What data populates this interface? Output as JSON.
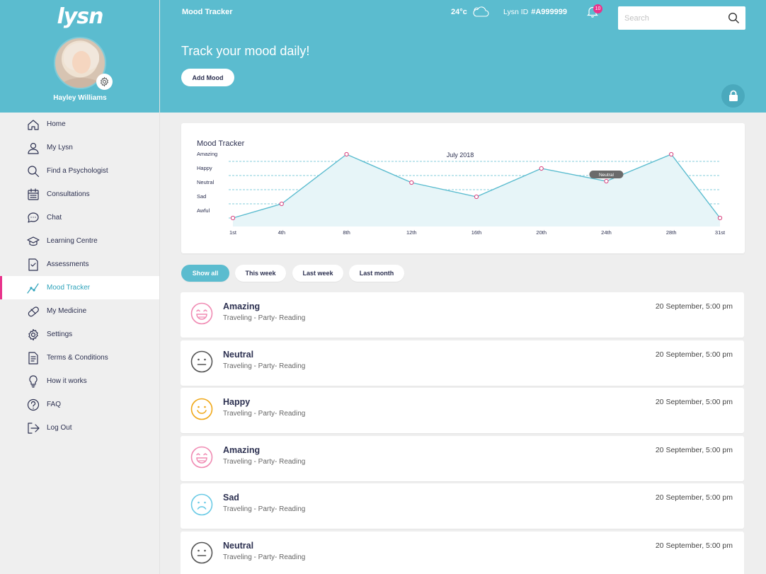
{
  "brand": {
    "logo": "lysn"
  },
  "user": {
    "name": "Hayley Williams"
  },
  "sidebar": {
    "items": [
      {
        "label": "Home",
        "icon": "home-icon",
        "active": false
      },
      {
        "label": "My Lysn",
        "icon": "user-icon",
        "active": false
      },
      {
        "label": "Find a Psychologist",
        "icon": "search-icon",
        "active": false
      },
      {
        "label": "Consultations",
        "icon": "calendar-icon",
        "active": false
      },
      {
        "label": "Chat",
        "icon": "chat-icon",
        "active": false
      },
      {
        "label": "Learning Centre",
        "icon": "graduation-cap-icon",
        "active": false
      },
      {
        "label": "Assessments",
        "icon": "assessment-icon",
        "active": false
      },
      {
        "label": "Mood Tracker",
        "icon": "trend-line-icon",
        "active": true
      },
      {
        "label": "My Medicine",
        "icon": "pill-icon",
        "active": false
      },
      {
        "label": "Settings",
        "icon": "gear-icon",
        "active": false
      },
      {
        "label": "Terms & Conditions",
        "icon": "document-icon",
        "active": false
      },
      {
        "label": "How it works",
        "icon": "lightbulb-icon",
        "active": false
      },
      {
        "label": "FAQ",
        "icon": "question-icon",
        "active": false
      },
      {
        "label": "Log Out",
        "icon": "logout-icon",
        "active": false
      }
    ]
  },
  "header": {
    "title": "Mood Tracker",
    "temperature": "24°c",
    "lysn_id_label": "Lysn ID",
    "lysn_id_value": "#A999999",
    "notification_count": "10",
    "search_placeholder": "Search",
    "hero_title": "Track your mood daily!",
    "add_mood_label": "Add Mood"
  },
  "chart_data": {
    "type": "line",
    "heading": "Mood Tracker",
    "title": "July 2018",
    "y_levels": [
      "Awful",
      "Sad",
      "Neutral",
      "Happy",
      "Amazing"
    ],
    "x_ticks": [
      "1st",
      "4th",
      "8th",
      "12th",
      "16th",
      "20th",
      "24th",
      "28th",
      "31st"
    ],
    "x": [
      1,
      4,
      8,
      12,
      16,
      20,
      24,
      28,
      31
    ],
    "values": [
      0,
      1,
      4.5,
      2.5,
      1.5,
      3.5,
      2.6,
      4.5,
      0
    ],
    "xlim": [
      1,
      31
    ],
    "ylim": [
      -0.6,
      4.5
    ],
    "grid": true,
    "tooltip": {
      "label": "Neutral",
      "x": 24
    },
    "colors": {
      "line": "#5bbccf",
      "fill": "#e7f5f8",
      "point": "#d9417e",
      "grid": "#5bbccf"
    }
  },
  "filters": [
    {
      "label": "Show all",
      "active": true
    },
    {
      "label": "This week",
      "active": false
    },
    {
      "label": "Last week",
      "active": false
    },
    {
      "label": "Last month",
      "active": false
    }
  ],
  "entries": [
    {
      "mood": "Amazing",
      "tags": "Traveling - Party- Reading",
      "time": "20 September, 5:00 pm",
      "face": "amazing-face-icon",
      "color": "#f08bb3"
    },
    {
      "mood": "Neutral",
      "tags": "Traveling - Party- Reading",
      "time": "20 September, 5:00 pm",
      "face": "neutral-face-icon",
      "color": "#555555"
    },
    {
      "mood": "Happy",
      "tags": "Traveling - Party- Reading",
      "time": "20 September, 5:00 pm",
      "face": "happy-face-icon",
      "color": "#f0a818"
    },
    {
      "mood": "Amazing",
      "tags": "Traveling - Party- Reading",
      "time": "20 September, 5:00 pm",
      "face": "amazing-face-icon",
      "color": "#f08bb3"
    },
    {
      "mood": "Sad",
      "tags": "Traveling - Party- Reading",
      "time": "20 September, 5:00 pm",
      "face": "sad-face-icon",
      "color": "#6ccbe6"
    },
    {
      "mood": "Neutral",
      "tags": "Traveling - Party- Reading",
      "time": "20 September, 5:00 pm",
      "face": "neutral-face-icon",
      "color": "#555555"
    }
  ]
}
